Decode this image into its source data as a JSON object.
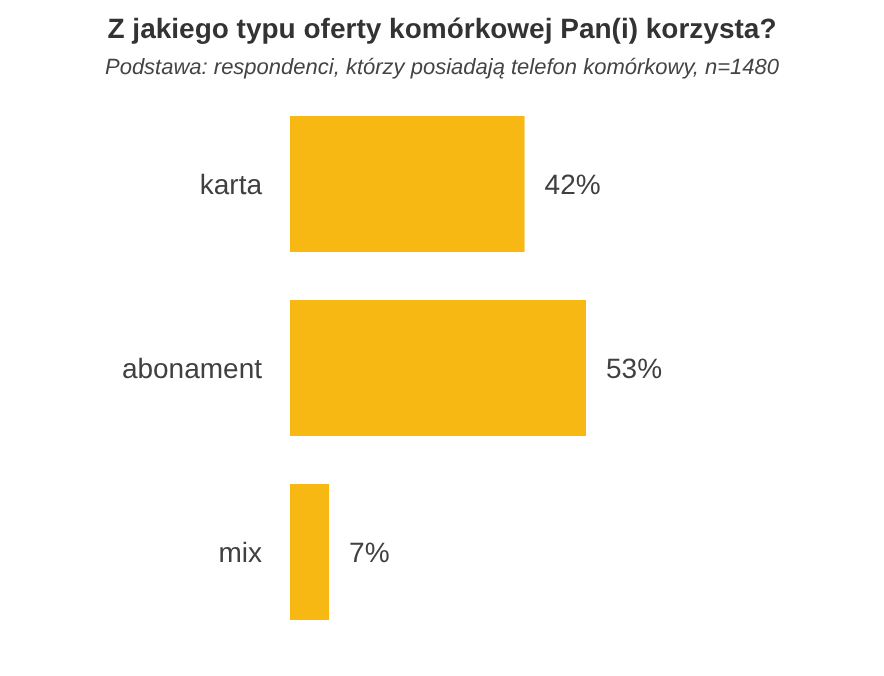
{
  "chart_data": {
    "type": "bar",
    "orientation": "horizontal",
    "title": "Z jakiego typu oferty komórkowej Pan(i) korzysta?",
    "subtitle": "Podstawa: respondenci, którzy posiadają telefon komórkowy, n=1480",
    "categories": [
      "karta",
      "abonament",
      "mix"
    ],
    "values": [
      42,
      53,
      7
    ],
    "value_labels": [
      "42%",
      "53%",
      "7%"
    ],
    "color": "#f7b814",
    "legend": false,
    "grid": false
  }
}
